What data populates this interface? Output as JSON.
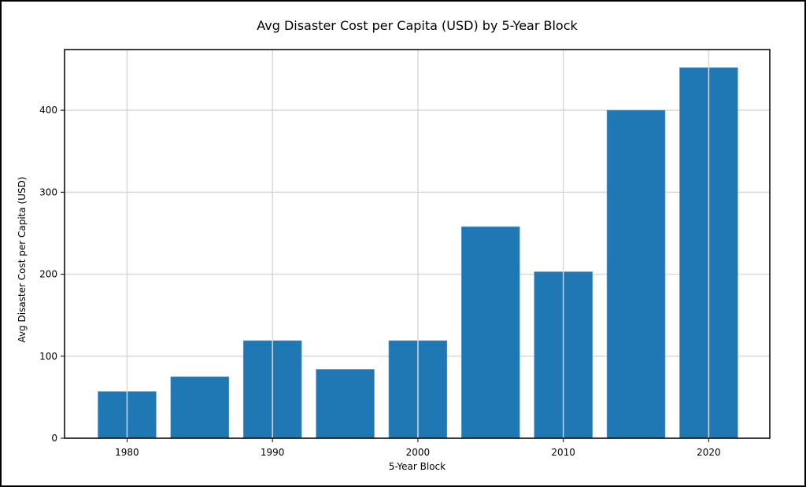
{
  "chart_data": {
    "type": "bar",
    "title": "Avg Disaster Cost per Capita (USD) by 5-Year Block",
    "xlabel": "5-Year Block",
    "ylabel": "Avg Disaster Cost per Capita (USD)",
    "x": [
      1980,
      1985,
      1990,
      1995,
      2000,
      2005,
      2010,
      2015,
      2020
    ],
    "values": [
      57,
      75,
      119,
      84,
      119,
      258,
      203,
      400,
      452
    ],
    "bar_width_years": 4,
    "xlim": [
      1975.7,
      2024.2
    ],
    "ylim": [
      0,
      474
    ],
    "xticks": [
      1980,
      1990,
      2000,
      2010,
      2020
    ],
    "yticks": [
      0,
      100,
      200,
      300,
      400
    ],
    "grid": true,
    "bar_color": "#1f77b4",
    "grid_color": "#d9d9d9"
  }
}
